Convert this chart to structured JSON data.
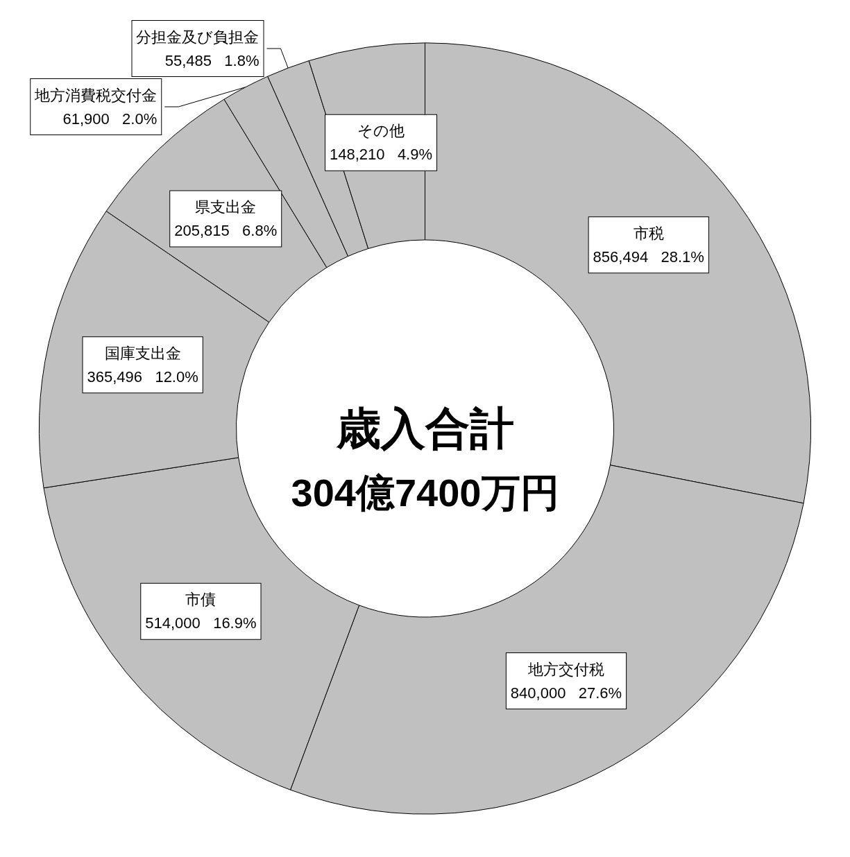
{
  "chart_data": {
    "type": "donut",
    "title": "歳入合計",
    "subtitle": "304億7400万円",
    "categories": [
      "市税",
      "地方交付税",
      "市債",
      "国庫支出金",
      "県支出金",
      "地方消費税交付金",
      "分担金及び負担金",
      "その他"
    ],
    "values": [
      856494,
      840000,
      514000,
      365496,
      205815,
      61900,
      55485,
      148210
    ],
    "value_labels": [
      "856,494   28.1%",
      "840,000   27.6%",
      "514,000   16.9%",
      "365,496   12.0%",
      "205,815   6.8%",
      "61,900   2.0%",
      "55,485   1.8%",
      "148,210   4.9%"
    ],
    "colors": [
      "#c0c0c0",
      "#c0c0c0",
      "#c0c0c0",
      "#c0c0c0",
      "#c0c0c0",
      "#c0c0c0",
      "#c0c0c0",
      "#c0c0c0"
    ],
    "legend": false
  }
}
